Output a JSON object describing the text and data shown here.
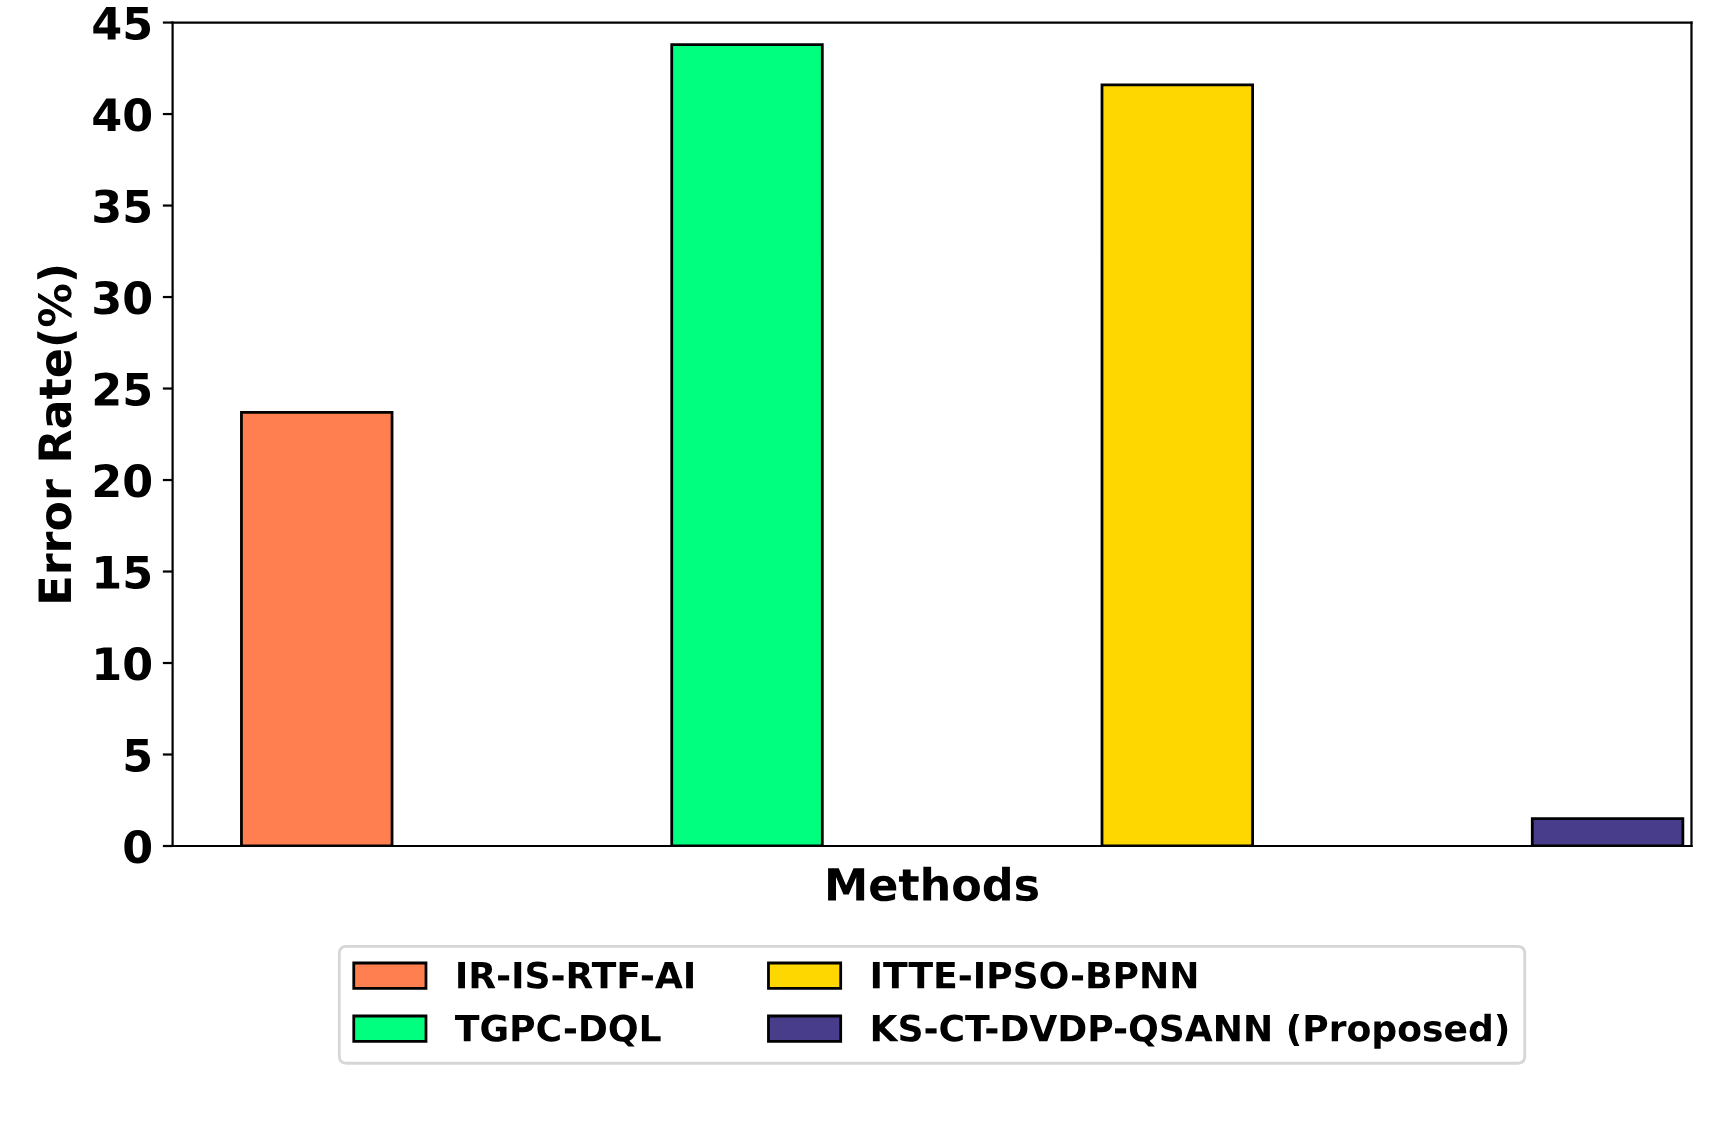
{
  "chart_data": {
    "type": "bar",
    "xlabel": "Methods",
    "ylabel": "Error Rate(%)",
    "categories": [
      null,
      null,
      null,
      null
    ],
    "series": [
      {
        "name": "IR-IS-RTF-AI",
        "color": "#ff7f50",
        "values": [
          23.7,
          null,
          null,
          null
        ]
      },
      {
        "name": "TGPC-DQL",
        "color": "#00ff7f",
        "values": [
          null,
          43.8,
          null,
          null
        ]
      },
      {
        "name": "ITTE-IPSO-BPNN",
        "color": "#ffd700",
        "values": [
          null,
          null,
          41.6,
          null
        ]
      },
      {
        "name": "KS-CT-DVDP-QSANN (Proposed)",
        "color": "#483d8b",
        "values": [
          null,
          null,
          null,
          1.5
        ]
      }
    ],
    "ylim": [
      0,
      45
    ],
    "yticks": [
      0,
      5,
      10,
      15,
      20,
      25,
      30,
      35,
      40,
      45
    ],
    "grid": false,
    "legend": "bottom"
  }
}
